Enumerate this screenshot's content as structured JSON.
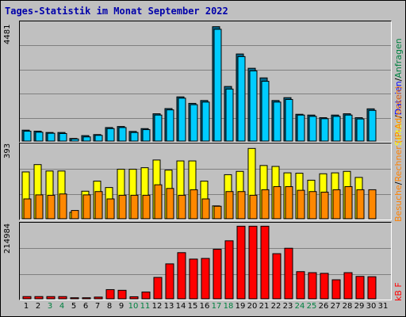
{
  "title": "Tages-Statistik im Monat September 2022",
  "colors": {
    "files": "#00ccff",
    "requests_shadow": "#006688",
    "sites": "#ffff00",
    "visits": "#ff8800",
    "kb": "#ff0000",
    "grid": "#808080",
    "weekend_label": "#008040",
    "label_visits": "#ff8000",
    "label_pages": "#ffff00",
    "label_files": "#0000ff",
    "label_requests": "#008040",
    "label_kb": "#ff0000"
  },
  "panel1": {
    "max_label": "4481",
    "legend": {
      "requests": "Anfragen",
      "sep1": "/",
      "files": "Dateien",
      "sep2": "/",
      "pages": "Seiten"
    }
  },
  "panel2": {
    "max_label": "393",
    "legend": {
      "sites": "Rechner (IP-Adressen)",
      "sep": "/",
      "visits": "Besuche"
    }
  },
  "panel3": {
    "max_label": "214984",
    "legend": {
      "kb": "kB F"
    }
  },
  "chart_data": [
    {
      "type": "bar",
      "categories": [
        "1",
        "2",
        "3",
        "4",
        "5",
        "6",
        "7",
        "8",
        "9",
        "10",
        "11",
        "12",
        "13",
        "14",
        "15",
        "16",
        "17",
        "18",
        "19",
        "20",
        "21",
        "22",
        "23",
        "24",
        "25",
        "26",
        "27",
        "28",
        "29",
        "30",
        "31"
      ],
      "weekend_days": [
        "3",
        "4",
        "10",
        "11",
        "17",
        "18",
        "24",
        "25"
      ],
      "ylim": [
        0,
        4481
      ],
      "series": [
        {
          "name": "Anfragen",
          "values": [
            420,
            380,
            330,
            330,
            100,
            210,
            250,
            520,
            560,
            370,
            480,
            1050,
            1250,
            1700,
            1450,
            1560,
            4400,
            2100,
            3350,
            2800,
            2430,
            1560,
            1670,
            1030,
            1000,
            900,
            1000,
            1050,
            900,
            1240,
            0
          ]
        },
        {
          "name": "Dateien",
          "values": [
            380,
            340,
            300,
            290,
            80,
            160,
            220,
            480,
            520,
            330,
            440,
            1000,
            1200,
            1650,
            1400,
            1500,
            4300,
            2000,
            3250,
            2700,
            2300,
            1500,
            1600,
            1000,
            950,
            860,
            950,
            1000,
            850,
            1180,
            0
          ]
        }
      ]
    },
    {
      "type": "bar",
      "categories": [
        "1",
        "2",
        "3",
        "4",
        "5",
        "6",
        "7",
        "8",
        "9",
        "10",
        "11",
        "12",
        "13",
        "14",
        "15",
        "16",
        "17",
        "18",
        "19",
        "20",
        "21",
        "22",
        "23",
        "24",
        "25",
        "26",
        "27",
        "28",
        "29",
        "30",
        "31"
      ],
      "ylim": [
        0,
        393
      ],
      "series": [
        {
          "name": "Rechner (IP-Adressen)",
          "values": [
            255,
            295,
            260,
            260,
            35,
            150,
            205,
            170,
            270,
            270,
            278,
            320,
            265,
            315,
            315,
            205,
            70,
            240,
            258,
            383,
            290,
            285,
            250,
            248,
            210,
            245,
            250,
            258,
            225,
            0,
            0
          ]
        },
        {
          "name": "Besuche",
          "values": [
            108,
            130,
            128,
            135,
            45,
            130,
            148,
            108,
            128,
            128,
            128,
            185,
            165,
            128,
            158,
            108,
            68,
            148,
            148,
            128,
            158,
            175,
            175,
            155,
            148,
            145,
            158,
            175,
            158,
            158,
            0
          ]
        }
      ]
    },
    {
      "type": "bar",
      "categories": [
        "1",
        "2",
        "3",
        "4",
        "5",
        "6",
        "7",
        "8",
        "9",
        "10",
        "11",
        "12",
        "13",
        "14",
        "15",
        "16",
        "17",
        "18",
        "19",
        "20",
        "21",
        "22",
        "23",
        "24",
        "25",
        "26",
        "27",
        "28",
        "29",
        "30",
        "31"
      ],
      "ylim": [
        0,
        214984
      ],
      "series": [
        {
          "name": "kB F",
          "values": [
            6500,
            6500,
            6500,
            6500,
            3000,
            3000,
            5000,
            27000,
            25000,
            6000,
            20000,
            63000,
            103000,
            136000,
            117000,
            119000,
            146000,
            171000,
            214000,
            214000,
            214000,
            133000,
            149000,
            80000,
            77000,
            75000,
            56000,
            77000,
            66000,
            65000,
            0
          ]
        }
      ]
    }
  ]
}
